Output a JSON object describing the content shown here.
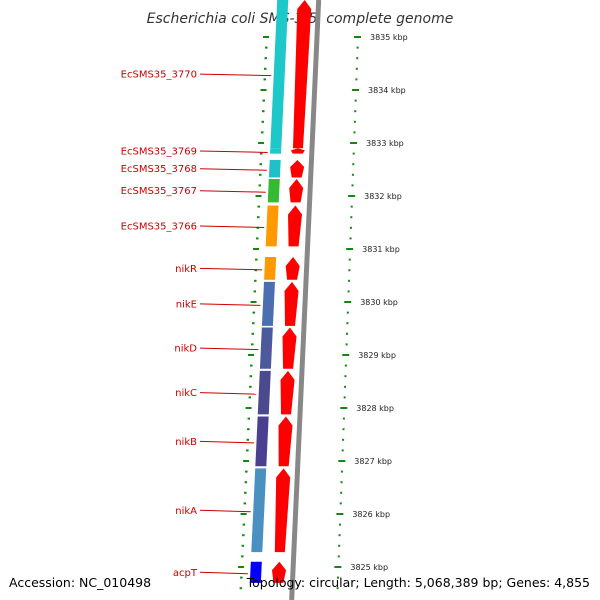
{
  "title": "Escherichia coli SMS-3-5, complete genome",
  "footer": {
    "accession": "Accession: NC_010498",
    "topology": "Topology: circular; Length: 5,068,389 bp; Genes: 4,855"
  },
  "colors": {
    "forward_cds": "#ff0000",
    "backbone": "#888888",
    "label": "#cc0000",
    "tick": "#118811"
  },
  "genes": [
    {
      "label": "EcSMS35_3770",
      "start_kbp": 3836.6,
      "end_kbp": 3832.9,
      "color": "#1ec8c8"
    },
    {
      "label": "EcSMS35_3769",
      "start_kbp": 3832.9,
      "end_kbp": 3832.8,
      "color": "#1ec8c8"
    },
    {
      "label": "EcSMS35_3768",
      "start_kbp": 3832.68,
      "end_kbp": 3832.35,
      "color": "#20c0c8"
    },
    {
      "label": "EcSMS35_3767",
      "start_kbp": 3832.32,
      "end_kbp": 3831.88,
      "color": "#33bb33"
    },
    {
      "label": "EcSMS35_3766",
      "start_kbp": 3831.82,
      "end_kbp": 3831.05,
      "color": "#ff9900"
    },
    {
      "label": "nikR",
      "start_kbp": 3830.85,
      "end_kbp": 3830.42,
      "color": "#ff9900"
    },
    {
      "label": "nikE",
      "start_kbp": 3830.38,
      "end_kbp": 3829.55,
      "color": "#4a6fb0"
    },
    {
      "label": "nikD",
      "start_kbp": 3829.52,
      "end_kbp": 3828.74,
      "color": "#4a5a9c"
    },
    {
      "label": "nikC",
      "start_kbp": 3828.7,
      "end_kbp": 3827.88,
      "color": "#4a4a8f"
    },
    {
      "label": "nikB",
      "start_kbp": 3827.84,
      "end_kbp": 3826.9,
      "color": "#4b4090"
    },
    {
      "label": "nikA",
      "start_kbp": 3826.86,
      "end_kbp": 3825.28,
      "color": "#4a90c0"
    },
    {
      "label": "acpT",
      "start_kbp": 3825.1,
      "end_kbp": 3824.7,
      "color": "#0000ff"
    }
  ],
  "ruler": [
    {
      "label": "3835 kbp",
      "kbp": 3835
    },
    {
      "label": "3834 kbp",
      "kbp": 3834
    },
    {
      "label": "3833 kbp",
      "kbp": 3833
    },
    {
      "label": "3832 kbp",
      "kbp": 3832
    },
    {
      "label": "3831 kbp",
      "kbp": 3831
    },
    {
      "label": "3830 kbp",
      "kbp": 3830
    },
    {
      "label": "3829 kbp",
      "kbp": 3829
    },
    {
      "label": "3828 kbp",
      "kbp": 3828
    },
    {
      "label": "3827 kbp",
      "kbp": 3827
    },
    {
      "label": "3826 kbp",
      "kbp": 3826
    },
    {
      "label": "3825 kbp",
      "kbp": 3825
    }
  ]
}
